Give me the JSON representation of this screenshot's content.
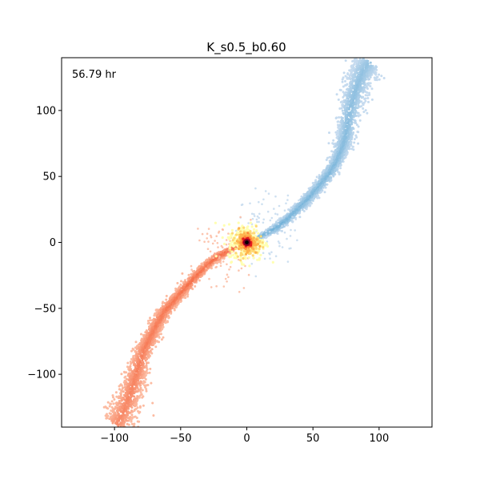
{
  "chart_data": {
    "type": "scatter",
    "title": "K_s0.5_b0.60",
    "annotation": "56.79 hr",
    "xlabel": "",
    "ylabel": "",
    "xlim": [
      -140,
      140
    ],
    "ylim": [
      -140,
      140
    ],
    "x_ticks": [
      -100,
      -50,
      0,
      50,
      100
    ],
    "y_ticks": [
      -100,
      -50,
      0,
      50,
      100
    ],
    "x_tick_labels": [
      "−100",
      "−50",
      "0",
      "50",
      "100"
    ],
    "y_tick_labels": [
      "−100",
      "−50",
      "0",
      "50",
      "100"
    ],
    "grid": false,
    "legend": "none",
    "series": [
      {
        "part": "upper tidal tail",
        "color_near": "#6baed6",
        "color_far": "#c6dbef",
        "centerline": [
          [
            8,
            3
          ],
          [
            15,
            7
          ],
          [
            22,
            11
          ],
          [
            30,
            17
          ],
          [
            38,
            25
          ],
          [
            46,
            33
          ],
          [
            54,
            42
          ],
          [
            62,
            52
          ],
          [
            68,
            62
          ],
          [
            72,
            72
          ],
          [
            75,
            82
          ],
          [
            77,
            95
          ],
          [
            80,
            108
          ],
          [
            84,
            120
          ],
          [
            88,
            130
          ],
          [
            92,
            136
          ]
        ],
        "width": [
          1.5,
          2,
          3,
          3,
          3.5,
          4,
          4,
          5,
          5,
          6,
          7,
          8,
          9,
          10,
          11,
          12
        ]
      },
      {
        "part": "lower tidal tail",
        "color_near": "#f4623a",
        "color_far": "#fcbba1",
        "centerline": [
          [
            -8,
            -3
          ],
          [
            -15,
            -7
          ],
          [
            -22,
            -11
          ],
          [
            -30,
            -17
          ],
          [
            -38,
            -25
          ],
          [
            -46,
            -34
          ],
          [
            -54,
            -43
          ],
          [
            -62,
            -52
          ],
          [
            -68,
            -62
          ],
          [
            -73,
            -72
          ],
          [
            -78,
            -82
          ],
          [
            -82,
            -95
          ],
          [
            -86,
            -108
          ],
          [
            -90,
            -120
          ],
          [
            -94,
            -130
          ],
          [
            -98,
            -138
          ]
        ],
        "width": [
          1.5,
          2,
          3,
          3,
          3.5,
          4,
          4,
          5,
          5,
          6,
          7,
          8,
          9,
          10,
          11,
          12
        ]
      },
      {
        "part": "central core",
        "center": [
          0,
          0
        ],
        "colors": [
          "#ffffb2",
          "#fed976",
          "#feb24c",
          "#fd8d3c",
          "#e31a1c",
          "#800026",
          "#000000"
        ]
      }
    ]
  }
}
